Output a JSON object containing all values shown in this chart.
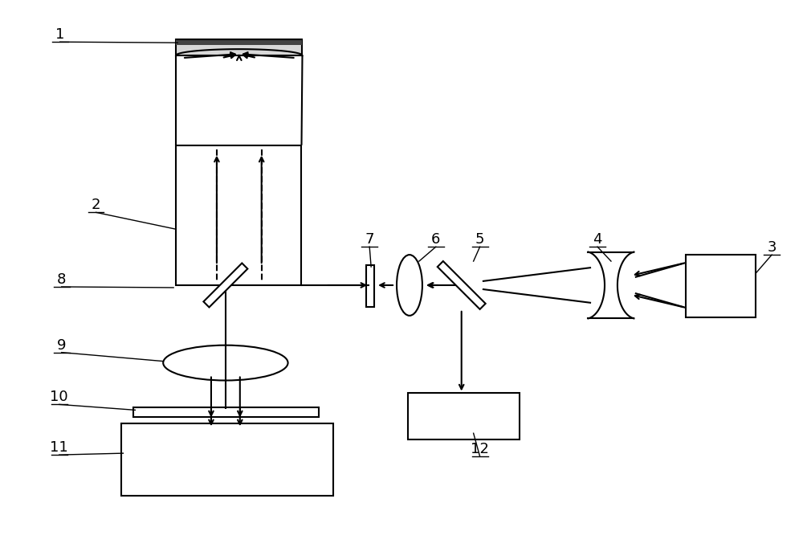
{
  "bg_color": "#ffffff",
  "line_color": "#000000",
  "figsize": [
    10.0,
    6.97
  ],
  "dpi": 100
}
